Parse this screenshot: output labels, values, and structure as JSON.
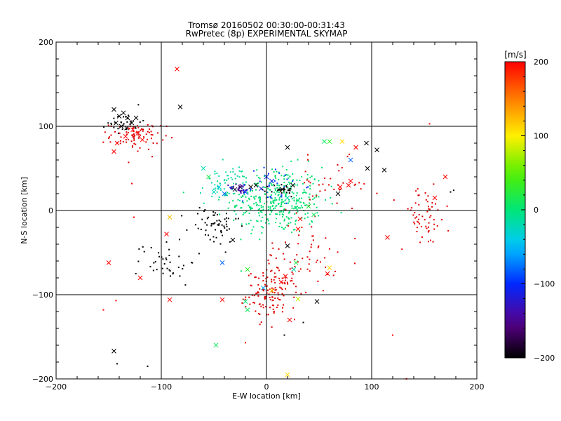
{
  "chart_data": {
    "type": "scatter",
    "title": "Tromsø 20160502 00:30:00-00:31:43",
    "subtitle": "RwPretec (8p) EXPERIMENTAL SKYMAP",
    "xlabel": "E-W location [km]",
    "ylabel": "N-S location [km]",
    "xlim": [
      -200,
      200
    ],
    "ylim": [
      -200,
      200
    ],
    "xticks": [
      -200,
      -100,
      0,
      100,
      200
    ],
    "yticks": [
      -200,
      -100,
      0,
      100,
      200
    ],
    "grid": true,
    "colorbar": {
      "label": "[m/s]",
      "min": -200,
      "max": 200,
      "ticks": [
        200,
        100,
        0,
        -100,
        -200
      ]
    },
    "clusters": [
      {
        "marker": "dot",
        "color": "#00e070",
        "n": 360,
        "cx": 10,
        "cy": 12,
        "sx": 22,
        "sy": 20
      },
      {
        "marker": "dot",
        "color": "#10d8a8",
        "n": 60,
        "cx": -40,
        "cy": 30,
        "sx": 12,
        "sy": 12
      },
      {
        "marker": "dot",
        "color": "#e00000",
        "n": 120,
        "cx": 5,
        "cy": -100,
        "sx": 12,
        "sy": 14
      },
      {
        "marker": "dot",
        "color": "#e00000",
        "n": 70,
        "cx": 30,
        "cy": -60,
        "sx": 18,
        "sy": 20
      },
      {
        "marker": "dot",
        "color": "#e00000",
        "n": 80,
        "cx": -125,
        "cy": 88,
        "sx": 12,
        "sy": 8
      },
      {
        "marker": "dot",
        "color": "#e00000",
        "n": 60,
        "cx": 150,
        "cy": -8,
        "sx": 12,
        "sy": 18
      },
      {
        "marker": "dot",
        "color": "#e00000",
        "n": 40,
        "cx": 60,
        "cy": 30,
        "sx": 20,
        "sy": 15
      },
      {
        "marker": "dot",
        "color": "#000000",
        "n": 60,
        "cx": -50,
        "cy": -18,
        "sx": 12,
        "sy": 12
      },
      {
        "marker": "dot",
        "color": "#000000",
        "n": 40,
        "cx": -95,
        "cy": -60,
        "sx": 14,
        "sy": 14
      },
      {
        "marker": "dot",
        "color": "#000000",
        "n": 30,
        "cx": -135,
        "cy": 105,
        "sx": 8,
        "sy": 6
      },
      {
        "marker": "dot",
        "color": "#4000a0",
        "n": 25,
        "cx": -25,
        "cy": 26,
        "sx": 5,
        "sy": 3
      },
      {
        "marker": "dot",
        "color": "#0030ff",
        "n": 30,
        "cx": 5,
        "cy": 30,
        "sx": 15,
        "sy": 12
      },
      {
        "marker": "dot",
        "color": "#000000",
        "n": 25,
        "cx": 15,
        "cy": 24,
        "sx": 6,
        "sy": 4
      }
    ],
    "points": [
      {
        "x": -143,
        "y": 104,
        "v": -200,
        "m": "x"
      },
      {
        "x": -140,
        "y": 112,
        "v": -200,
        "m": "x"
      },
      {
        "x": -136,
        "y": 116,
        "v": -200,
        "m": "x"
      },
      {
        "x": -132,
        "y": 110,
        "v": -200,
        "m": "x"
      },
      {
        "x": -128,
        "y": 104,
        "v": -200,
        "m": "x"
      },
      {
        "x": -138,
        "y": 100,
        "v": -200,
        "m": "x"
      },
      {
        "x": -145,
        "y": 120,
        "v": -200,
        "m": "x"
      },
      {
        "x": -124,
        "y": 110,
        "v": -200,
        "m": "x"
      },
      {
        "x": -133,
        "y": 98,
        "v": -200,
        "m": "x"
      },
      {
        "x": -127,
        "y": 96,
        "v": 200,
        "m": "x"
      },
      {
        "x": -122,
        "y": 92,
        "v": 200,
        "m": "x"
      },
      {
        "x": -118,
        "y": 84,
        "v": 200,
        "m": "x"
      },
      {
        "x": -134,
        "y": 88,
        "v": 200,
        "m": "x"
      },
      {
        "x": -145,
        "y": 70,
        "v": 200,
        "m": "x"
      },
      {
        "x": -142,
        "y": 80,
        "v": 200,
        "m": "x"
      },
      {
        "x": -85,
        "y": 168,
        "v": 200,
        "m": "x"
      },
      {
        "x": -82,
        "y": 123,
        "v": -200,
        "m": "x"
      },
      {
        "x": -150,
        "y": -62,
        "v": 200,
        "m": "x"
      },
      {
        "x": -120,
        "y": -80,
        "v": 200,
        "m": "x"
      },
      {
        "x": -92,
        "y": -106,
        "v": 200,
        "m": "x"
      },
      {
        "x": -95,
        "y": -28,
        "v": 200,
        "m": "x"
      },
      {
        "x": -92,
        "y": -8,
        "v": 120,
        "m": "x"
      },
      {
        "x": -60,
        "y": 50,
        "v": -20,
        "m": "x"
      },
      {
        "x": -55,
        "y": 40,
        "v": 20,
        "m": "x"
      },
      {
        "x": -45,
        "y": 28,
        "v": -40,
        "m": "x"
      },
      {
        "x": -50,
        "y": 22,
        "v": -30,
        "m": "x"
      },
      {
        "x": -40,
        "y": 20,
        "v": -80,
        "m": "x"
      },
      {
        "x": -30,
        "y": 25,
        "v": -180,
        "m": "x"
      },
      {
        "x": -25,
        "y": 28,
        "v": -170,
        "m": "x"
      },
      {
        "x": -20,
        "y": 22,
        "v": -100,
        "m": "x"
      },
      {
        "x": -15,
        "y": 28,
        "v": -200,
        "m": "x"
      },
      {
        "x": -10,
        "y": 30,
        "v": -200,
        "m": "x"
      },
      {
        "x": -5,
        "y": 26,
        "v": -120,
        "m": "x"
      },
      {
        "x": 0,
        "y": 40,
        "v": -100,
        "m": "x"
      },
      {
        "x": 5,
        "y": 35,
        "v": -110,
        "m": "x"
      },
      {
        "x": 15,
        "y": 25,
        "v": -200,
        "m": "x"
      },
      {
        "x": 25,
        "y": 30,
        "v": -200,
        "m": "x"
      },
      {
        "x": 30,
        "y": 12,
        "v": 0,
        "m": "x"
      },
      {
        "x": 40,
        "y": 5,
        "v": 20,
        "m": "x"
      },
      {
        "x": 45,
        "y": -5,
        "v": 10,
        "m": "x"
      },
      {
        "x": 20,
        "y": 15,
        "v": -20,
        "m": "x"
      },
      {
        "x": 55,
        "y": 82,
        "v": 10,
        "m": "x"
      },
      {
        "x": 60,
        "y": 82,
        "v": 30,
        "m": "x"
      },
      {
        "x": 72,
        "y": 82,
        "v": 110,
        "m": "x"
      },
      {
        "x": 85,
        "y": 75,
        "v": 200,
        "m": "x"
      },
      {
        "x": 95,
        "y": 80,
        "v": -200,
        "m": "x"
      },
      {
        "x": 105,
        "y": 72,
        "v": -200,
        "m": "x"
      },
      {
        "x": 112,
        "y": 48,
        "v": -200,
        "m": "x"
      },
      {
        "x": 96,
        "y": 50,
        "v": -200,
        "m": "x"
      },
      {
        "x": 80,
        "y": 60,
        "v": -80,
        "m": "x"
      },
      {
        "x": 80,
        "y": 35,
        "v": 200,
        "m": "x"
      },
      {
        "x": 78,
        "y": 30,
        "v": 200,
        "m": "x"
      },
      {
        "x": 70,
        "y": 28,
        "v": 200,
        "m": "x"
      },
      {
        "x": 68,
        "y": 20,
        "v": -200,
        "m": "x"
      },
      {
        "x": 20,
        "y": 75,
        "v": -200,
        "m": "x"
      },
      {
        "x": 170,
        "y": 40,
        "v": 200,
        "m": "x"
      },
      {
        "x": 160,
        "y": 15,
        "v": 200,
        "m": "x"
      },
      {
        "x": 115,
        "y": -32,
        "v": 200,
        "m": "x"
      },
      {
        "x": 32,
        "y": -10,
        "v": 200,
        "m": "x"
      },
      {
        "x": 30,
        "y": -22,
        "v": 200,
        "m": "x"
      },
      {
        "x": 20,
        "y": -42,
        "v": -200,
        "m": "x"
      },
      {
        "x": 28,
        "y": -62,
        "v": 20,
        "m": "x"
      },
      {
        "x": 26,
        "y": -70,
        "v": -20,
        "m": "x"
      },
      {
        "x": 18,
        "y": -78,
        "v": 200,
        "m": "x"
      },
      {
        "x": 14,
        "y": -85,
        "v": 200,
        "m": "x"
      },
      {
        "x": 60,
        "y": -68,
        "v": 110,
        "m": "x"
      },
      {
        "x": 58,
        "y": -75,
        "v": 200,
        "m": "x"
      },
      {
        "x": 30,
        "y": -105,
        "v": 80,
        "m": "x"
      },
      {
        "x": 48,
        "y": -108,
        "v": -200,
        "m": "x"
      },
      {
        "x": -18,
        "y": -70,
        "v": 30,
        "m": "x"
      },
      {
        "x": -20,
        "y": -108,
        "v": 0,
        "m": "x"
      },
      {
        "x": -18,
        "y": -118,
        "v": 10,
        "m": "x"
      },
      {
        "x": -42,
        "y": -106,
        "v": 200,
        "m": "x"
      },
      {
        "x": -42,
        "y": -62,
        "v": -80,
        "m": "x"
      },
      {
        "x": -32,
        "y": -35,
        "v": -200,
        "m": "x"
      },
      {
        "x": -48,
        "y": -160,
        "v": 10,
        "m": "x"
      },
      {
        "x": -3,
        "y": -92,
        "v": -60,
        "m": "x"
      },
      {
        "x": 5,
        "y": -95,
        "v": 120,
        "m": "x"
      },
      {
        "x": 22,
        "y": -130,
        "v": 200,
        "m": "x"
      },
      {
        "x": -145,
        "y": -167,
        "v": -200,
        "m": "x"
      },
      {
        "x": 20,
        "y": -195,
        "v": 110,
        "m": "x"
      },
      {
        "x": -155,
        "y": -118,
        "v": 200,
        "m": "dot"
      },
      {
        "x": -143,
        "y": -107,
        "v": 200,
        "m": "dot"
      },
      {
        "x": -142,
        "y": -182,
        "v": -200,
        "m": "dot"
      },
      {
        "x": -113,
        "y": -185,
        "v": -200,
        "m": "dot"
      },
      {
        "x": -128,
        "y": 32,
        "v": 200,
        "m": "dot"
      },
      {
        "x": -126,
        "y": -8,
        "v": 200,
        "m": "dot"
      },
      {
        "x": -95,
        "y": 100,
        "v": 200,
        "m": "dot"
      },
      {
        "x": 155,
        "y": 103,
        "v": 200,
        "m": "dot"
      },
      {
        "x": 120,
        "y": -148,
        "v": 200,
        "m": "dot"
      },
      {
        "x": 133,
        "y": -200,
        "v": 200,
        "m": "dot"
      },
      {
        "x": -20,
        "y": -157,
        "v": 200,
        "m": "dot"
      },
      {
        "x": 17,
        "y": -148,
        "v": -200,
        "m": "dot"
      },
      {
        "x": 35,
        "y": -133,
        "v": -200,
        "m": "dot"
      },
      {
        "x": 175,
        "y": 22,
        "v": -200,
        "m": "dot"
      },
      {
        "x": 178,
        "y": 24,
        "v": -200,
        "m": "dot"
      }
    ]
  }
}
